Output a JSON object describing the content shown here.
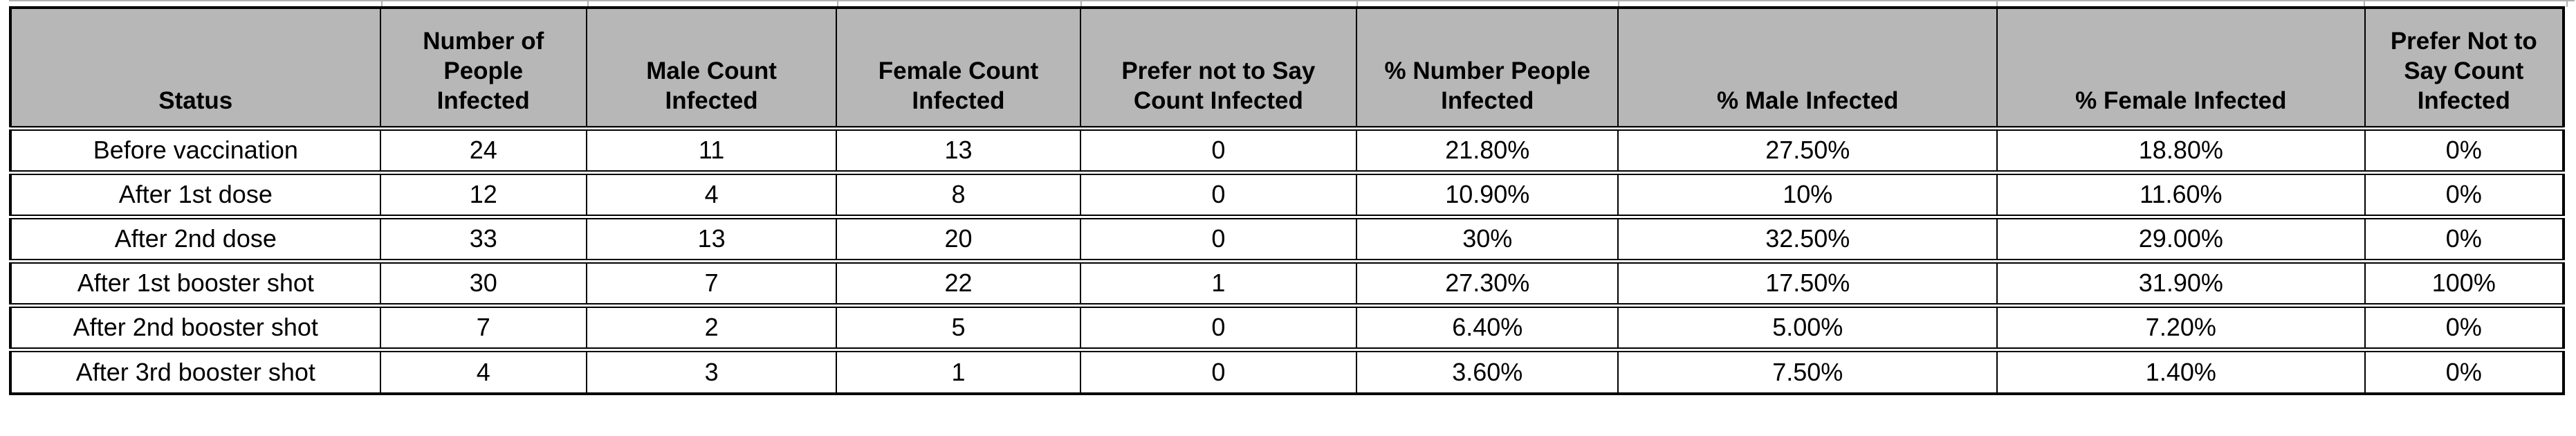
{
  "chart_data": {
    "type": "table",
    "columns": [
      "Status",
      "Number of\nPeople\nInfected",
      "Male Count\nInfected",
      "Female Count\nInfected",
      "Prefer not to Say\nCount Infected",
      "% Number People\nInfected",
      "% Male Infected",
      "% Female Infected",
      "Prefer Not to\nSay Count\nInfected"
    ],
    "rows": [
      [
        "Before vaccination",
        "24",
        "11",
        "13",
        "0",
        "21.80%",
        "27.50%",
        "18.80%",
        "0%"
      ],
      [
        "After 1st dose",
        "12",
        "4",
        "8",
        "0",
        "10.90%",
        "10%",
        "11.60%",
        "0%"
      ],
      [
        "After 2nd dose",
        "33",
        "13",
        "20",
        "0",
        "30%",
        "32.50%",
        "29.00%",
        "0%"
      ],
      [
        "After 1st booster shot",
        "30",
        "7",
        "22",
        "1",
        "27.30%",
        "17.50%",
        "31.90%",
        "100%"
      ],
      [
        "After 2nd booster shot",
        "7",
        "2",
        "5",
        "0",
        "6.40%",
        "5.00%",
        "7.20%",
        "0%"
      ],
      [
        "After 3rd booster shot",
        "4",
        "3",
        "1",
        "0",
        "3.60%",
        "7.50%",
        "1.40%",
        "0%"
      ]
    ]
  },
  "style": {
    "header_bg": "#b7b7b7",
    "border_color": "#000000",
    "gridline_color": "#b0b0b0"
  }
}
